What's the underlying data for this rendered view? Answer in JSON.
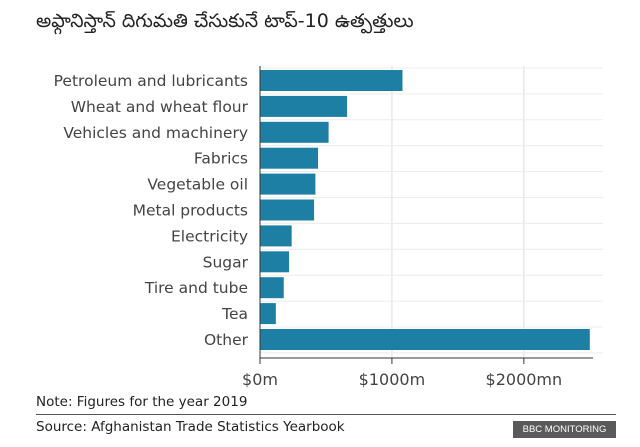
{
  "title": "అఫ్గానిస్తాన్ దిగుమతి చేసుకునే టాప్-10 ఉత్పత్తులు",
  "note": "Note: Figures for the year 2019",
  "source": "Source: Afghanistan Trade Statistics Yearbook",
  "badge": "BBC MONITORING",
  "colors": {
    "bar": "#1d7fa3",
    "grid": "#dddddd",
    "axis": "#333333",
    "label": "#444444"
  },
  "chart_data": {
    "type": "bar",
    "orientation": "horizontal",
    "categories": [
      "Petroleum and lubricants",
      "Wheat and wheat flour",
      "Vehicles and machinery",
      "Fabrics",
      "Vegetable oil",
      "Metal products",
      "Electricity",
      "Sugar",
      "Tire and tube",
      "Tea",
      "Other"
    ],
    "values": [
      1080,
      660,
      520,
      440,
      420,
      410,
      240,
      220,
      180,
      120,
      2500
    ],
    "xlim": [
      0,
      2600
    ],
    "xticks": [
      0,
      1000,
      2000
    ],
    "xtick_labels": [
      "$0m",
      "$1000m",
      "$2000mn"
    ],
    "grid": "vertical lines at ticks"
  }
}
